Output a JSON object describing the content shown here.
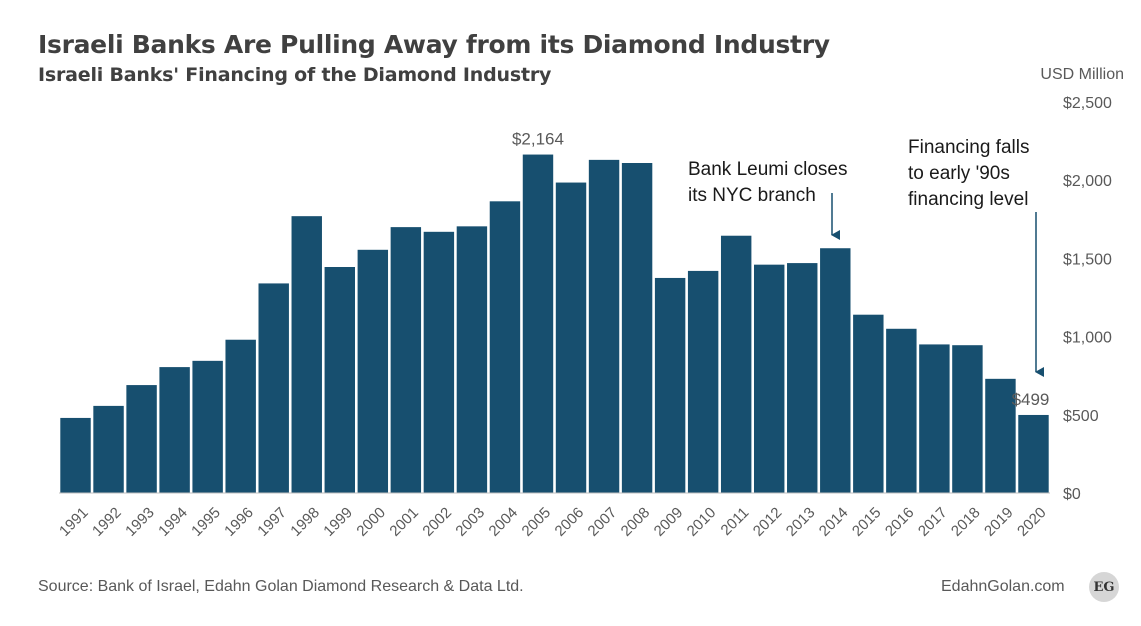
{
  "title": "Israeli Banks Are Pulling Away from its Diamond Industry",
  "subtitle": "Israeli Banks' Financing of the Diamond Industry",
  "unit_label": "USD Million",
  "source": "Source: Bank of Israel, Edahn Golan Diamond Research & Data Ltd.",
  "website": "EdahnGolan.com",
  "logo_text": "EG",
  "colors": {
    "bar": "#174f6f",
    "text": "#404040",
    "axis_text": "#595959"
  },
  "chart_data": {
    "type": "bar",
    "categories": [
      "1991",
      "1992",
      "1993",
      "1994",
      "1995",
      "1996",
      "1997",
      "1998",
      "1999",
      "2000",
      "2001",
      "2002",
      "2003",
      "2004",
      "2005",
      "2006",
      "2007",
      "2008",
      "2009",
      "2010",
      "2011",
      "2012",
      "2013",
      "2014",
      "2015",
      "2016",
      "2017",
      "2018",
      "2019",
      "2020"
    ],
    "values": [
      480,
      557,
      690,
      805,
      845,
      980,
      1340,
      1770,
      1445,
      1555,
      1700,
      1670,
      1705,
      1865,
      2164,
      1985,
      2130,
      2110,
      1375,
      1420,
      1645,
      1460,
      1470,
      1565,
      1140,
      1050,
      950,
      945,
      730,
      499
    ],
    "ylim": [
      0,
      2500
    ],
    "yticks": [
      0,
      500,
      1000,
      1500,
      2000,
      2500
    ],
    "ytick_labels": [
      "$0",
      "$500",
      "$1,000",
      "$1,500",
      "$2,000",
      "$2,500"
    ],
    "y_axis_position": "right",
    "grid": false,
    "data_labels": [
      {
        "category": "2005",
        "text": "$2,164"
      },
      {
        "category": "2020",
        "text": "$499"
      }
    ],
    "annotations": [
      {
        "category": "2014",
        "lines": [
          "Bank Leumi closes",
          "its NYC branch"
        ]
      },
      {
        "category": "2020",
        "lines": [
          "Financing falls",
          "to early '90s",
          "financing level"
        ]
      }
    ]
  }
}
